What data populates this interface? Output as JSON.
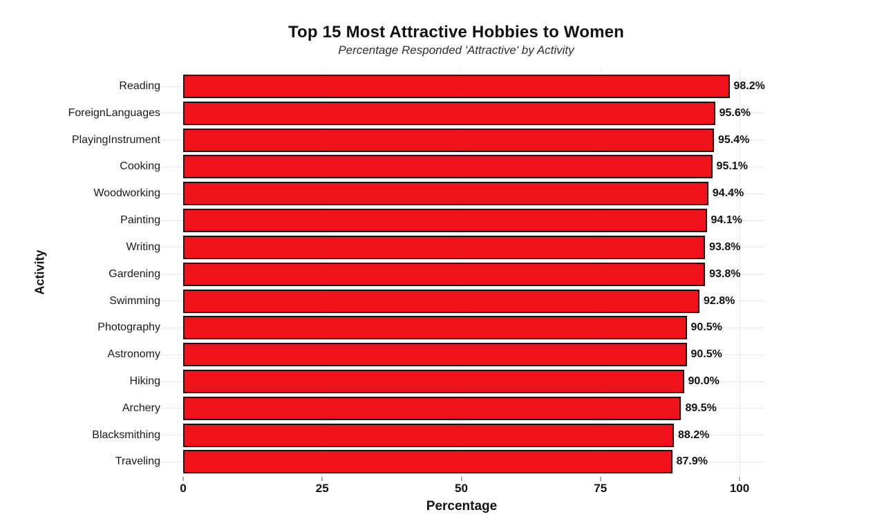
{
  "chart_data": {
    "type": "bar",
    "orientation": "horizontal",
    "title": "Top 15 Most Attractive Hobbies to Women",
    "subtitle": "Percentage Responded 'Attractive' by Activity",
    "xlabel": "Percentage",
    "ylabel": "Activity",
    "categories": [
      "Reading",
      "ForeignLanguages",
      "PlayingInstrument",
      "Cooking",
      "Woodworking",
      "Painting",
      "Writing",
      "Gardening",
      "Swimming",
      "Photography",
      "Astronomy",
      "Hiking",
      "Archery",
      "Blacksmithing",
      "Traveling"
    ],
    "values": [
      98.2,
      95.6,
      95.4,
      95.1,
      94.4,
      94.1,
      93.8,
      93.8,
      92.8,
      90.5,
      90.5,
      90.0,
      89.5,
      88.2,
      87.9
    ],
    "value_labels": [
      "98.2%",
      "95.6%",
      "95.4%",
      "95.1%",
      "94.4%",
      "94.1%",
      "93.8%",
      "93.8%",
      "92.8%",
      "90.5%",
      "90.5%",
      "90.0%",
      "89.5%",
      "88.2%",
      "87.9%"
    ],
    "xticks": [
      0,
      25,
      50,
      75,
      100
    ],
    "xtick_labels": [
      "0",
      "25",
      "50",
      "75",
      "100"
    ],
    "xlim": [
      0,
      104.5
    ],
    "grid": true,
    "legend": "none",
    "colors": {
      "bar_fill": "#F2121B",
      "bar_edge": "#230A0B",
      "grid_horizontal": "#ECE4E4",
      "grid_vertical": "#E8E8E8",
      "tick_mark": "#A8A8A8",
      "text": "#111111",
      "subtitle_text": "#2E2E2E",
      "background": "#FFFFFF"
    }
  }
}
